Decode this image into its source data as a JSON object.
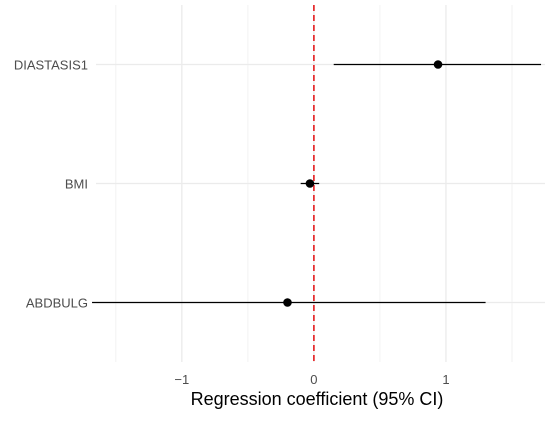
{
  "chart_data": {
    "type": "forest",
    "title": "",
    "xlabel": "Regression coefficient (95% CI)",
    "ylabel": "",
    "xlim": [
      -1.65,
      1.75
    ],
    "x_ticks": [
      -1,
      0,
      1
    ],
    "x_tick_labels": [
      "−1",
      "0",
      "1"
    ],
    "reference_line": 0,
    "grid": true,
    "categories": [
      "DIASTASIS1",
      "BMI",
      "ABDBULG"
    ],
    "series": [
      {
        "estimates": [
          0.94,
          -0.03,
          -0.2
        ],
        "ci_lower": [
          0.15,
          -0.1,
          -1.68
        ],
        "ci_upper": [
          1.72,
          0.04,
          1.3
        ]
      }
    ]
  },
  "colors": {
    "grid_major": "#ebebeb",
    "grid_minor": "#f2f2f2",
    "reference_line": "#e41a1c",
    "points": "#000000",
    "text": "#4d4d4d",
    "axis_title": "#000000"
  }
}
